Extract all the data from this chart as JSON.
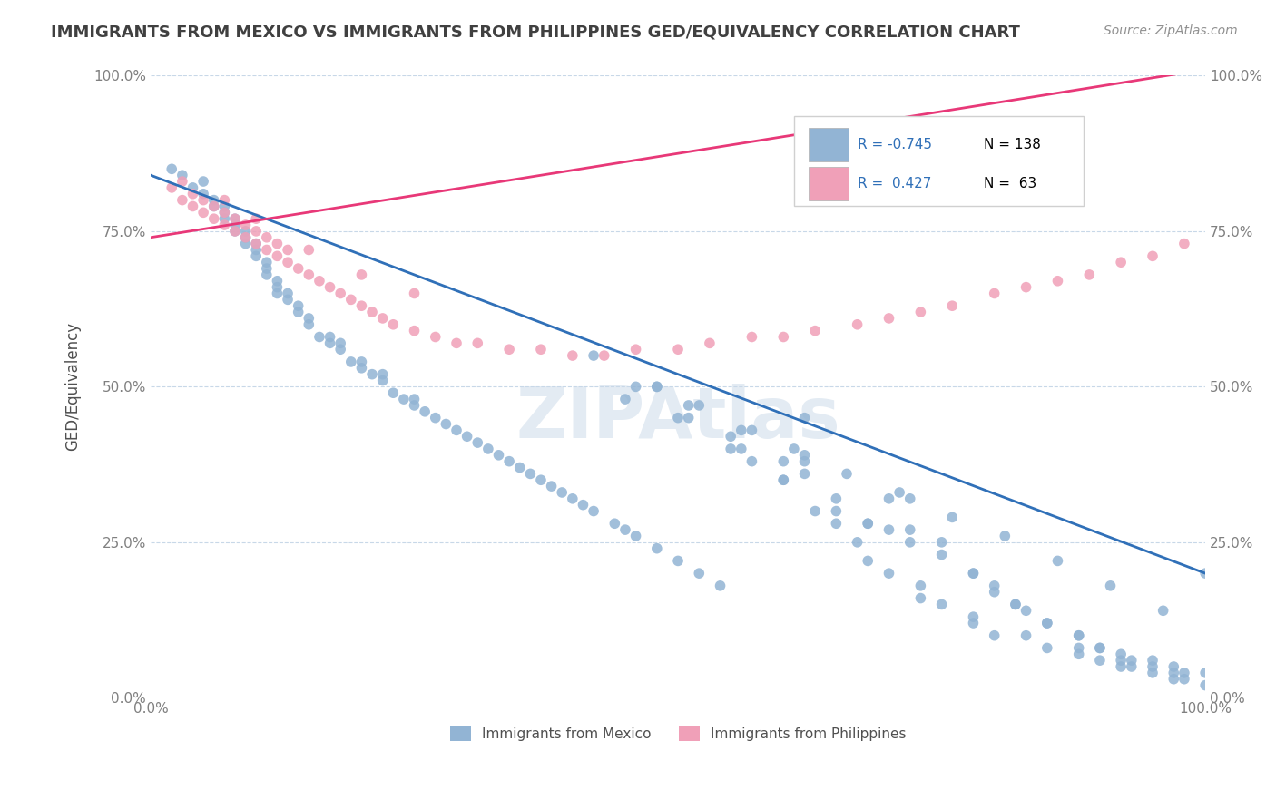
{
  "title": "IMMIGRANTS FROM MEXICO VS IMMIGRANTS FROM PHILIPPINES GED/EQUIVALENCY CORRELATION CHART",
  "source_text": "Source: ZipAtlas.com",
  "ylabel": "GED/Equivalency",
  "xlim": [
    0,
    1
  ],
  "ylim": [
    0,
    1
  ],
  "xtick_labels": [
    "0.0%",
    "100.0%"
  ],
  "ytick_labels": [
    "0.0%",
    "25.0%",
    "50.0%",
    "75.0%",
    "100.0%"
  ],
  "ytick_positions": [
    0.0,
    0.25,
    0.5,
    0.75,
    1.0
  ],
  "watermark": "ZIPAtlas",
  "blue_color": "#92b4d4",
  "pink_color": "#f0a0b8",
  "blue_line_color": "#3070b8",
  "pink_line_color": "#e83878",
  "title_color": "#404040",
  "legend_r_color": "#3070b8",
  "legend_n_color": "#000000",
  "axis_label_color": "#505050",
  "tick_color": "#808080",
  "grid_color": "#c8d8e8",
  "background_color": "#ffffff",
  "blue_scatter_x": [
    0.02,
    0.03,
    0.04,
    0.05,
    0.05,
    0.06,
    0.06,
    0.07,
    0.07,
    0.07,
    0.08,
    0.08,
    0.08,
    0.09,
    0.09,
    0.09,
    0.1,
    0.1,
    0.1,
    0.11,
    0.11,
    0.11,
    0.12,
    0.12,
    0.12,
    0.13,
    0.13,
    0.14,
    0.14,
    0.15,
    0.15,
    0.16,
    0.17,
    0.17,
    0.18,
    0.18,
    0.19,
    0.2,
    0.2,
    0.21,
    0.22,
    0.22,
    0.23,
    0.24,
    0.25,
    0.25,
    0.26,
    0.27,
    0.28,
    0.29,
    0.3,
    0.31,
    0.32,
    0.33,
    0.34,
    0.35,
    0.36,
    0.37,
    0.38,
    0.39,
    0.4,
    0.41,
    0.42,
    0.44,
    0.45,
    0.46,
    0.48,
    0.5,
    0.52,
    0.54,
    0.55,
    0.57,
    0.6,
    0.62,
    0.63,
    0.65,
    0.67,
    0.7,
    0.72,
    0.73,
    0.75,
    0.78,
    0.8,
    0.82,
    0.85,
    0.88,
    0.9,
    0.92,
    0.93,
    0.95,
    0.97,
    0.98,
    1.0,
    0.48,
    0.51,
    0.56,
    0.6,
    0.62,
    0.65,
    0.68,
    0.7,
    0.72,
    0.75,
    0.78,
    0.8,
    0.82,
    0.85,
    0.88,
    0.9,
    0.92,
    0.95,
    0.97,
    1.0,
    0.45,
    0.5,
    0.55,
    0.6,
    0.62,
    0.65,
    0.68,
    0.7,
    0.72,
    0.75,
    0.78,
    0.8,
    0.83,
    0.85,
    0.88,
    0.9,
    0.92,
    0.95,
    0.97,
    1.0,
    0.48,
    0.52,
    0.57,
    0.62,
    0.68,
    0.73,
    0.78,
    0.83,
    0.88,
    0.93,
    0.98,
    0.42,
    0.46,
    0.51,
    0.56,
    0.61,
    0.66,
    0.71,
    0.76,
    0.81,
    0.86,
    0.91,
    0.96
  ],
  "blue_scatter_y": [
    0.85,
    0.84,
    0.82,
    0.81,
    0.83,
    0.8,
    0.79,
    0.78,
    0.79,
    0.77,
    0.76,
    0.77,
    0.75,
    0.74,
    0.75,
    0.73,
    0.72,
    0.73,
    0.71,
    0.69,
    0.7,
    0.68,
    0.66,
    0.67,
    0.65,
    0.64,
    0.65,
    0.62,
    0.63,
    0.6,
    0.61,
    0.58,
    0.57,
    0.58,
    0.56,
    0.57,
    0.54,
    0.53,
    0.54,
    0.52,
    0.51,
    0.52,
    0.49,
    0.48,
    0.47,
    0.48,
    0.46,
    0.45,
    0.44,
    0.43,
    0.42,
    0.41,
    0.4,
    0.39,
    0.38,
    0.37,
    0.36,
    0.35,
    0.34,
    0.33,
    0.32,
    0.31,
    0.3,
    0.28,
    0.27,
    0.26,
    0.24,
    0.22,
    0.2,
    0.18,
    0.4,
    0.38,
    0.35,
    0.45,
    0.3,
    0.28,
    0.25,
    0.2,
    0.32,
    0.18,
    0.15,
    0.12,
    0.1,
    0.15,
    0.08,
    0.07,
    0.06,
    0.05,
    0.05,
    0.04,
    0.03,
    0.03,
    0.2,
    0.5,
    0.45,
    0.4,
    0.35,
    0.38,
    0.3,
    0.28,
    0.32,
    0.27,
    0.25,
    0.2,
    0.18,
    0.15,
    0.12,
    0.1,
    0.08,
    0.06,
    0.05,
    0.04,
    0.04,
    0.48,
    0.45,
    0.42,
    0.38,
    0.36,
    0.32,
    0.28,
    0.27,
    0.25,
    0.23,
    0.2,
    0.17,
    0.14,
    0.12,
    0.1,
    0.08,
    0.07,
    0.06,
    0.05,
    0.02,
    0.5,
    0.47,
    0.43,
    0.39,
    0.22,
    0.16,
    0.13,
    0.1,
    0.08,
    0.06,
    0.04,
    0.55,
    0.5,
    0.47,
    0.43,
    0.4,
    0.36,
    0.33,
    0.29,
    0.26,
    0.22,
    0.18,
    0.14
  ],
  "pink_scatter_x": [
    0.02,
    0.03,
    0.03,
    0.04,
    0.04,
    0.05,
    0.05,
    0.06,
    0.06,
    0.07,
    0.07,
    0.07,
    0.08,
    0.08,
    0.09,
    0.09,
    0.1,
    0.1,
    0.11,
    0.11,
    0.12,
    0.12,
    0.13,
    0.13,
    0.14,
    0.15,
    0.16,
    0.17,
    0.18,
    0.19,
    0.2,
    0.21,
    0.22,
    0.23,
    0.25,
    0.27,
    0.29,
    0.31,
    0.34,
    0.37,
    0.4,
    0.43,
    0.46,
    0.5,
    0.53,
    0.57,
    0.6,
    0.63,
    0.67,
    0.7,
    0.73,
    0.76,
    0.8,
    0.83,
    0.86,
    0.89,
    0.92,
    0.95,
    0.98,
    0.1,
    0.15,
    0.2,
    0.25
  ],
  "pink_scatter_y": [
    0.82,
    0.8,
    0.83,
    0.79,
    0.81,
    0.78,
    0.8,
    0.77,
    0.79,
    0.76,
    0.78,
    0.8,
    0.75,
    0.77,
    0.74,
    0.76,
    0.73,
    0.75,
    0.72,
    0.74,
    0.71,
    0.73,
    0.7,
    0.72,
    0.69,
    0.68,
    0.67,
    0.66,
    0.65,
    0.64,
    0.63,
    0.62,
    0.61,
    0.6,
    0.59,
    0.58,
    0.57,
    0.57,
    0.56,
    0.56,
    0.55,
    0.55,
    0.56,
    0.56,
    0.57,
    0.58,
    0.58,
    0.59,
    0.6,
    0.61,
    0.62,
    0.63,
    0.65,
    0.66,
    0.67,
    0.68,
    0.7,
    0.71,
    0.73,
    0.77,
    0.72,
    0.68,
    0.65
  ],
  "blue_trend_x": [
    0.0,
    1.0
  ],
  "blue_trend_y": [
    0.84,
    0.2
  ],
  "pink_trend_x": [
    0.0,
    1.0
  ],
  "pink_trend_y": [
    0.74,
    1.01
  ]
}
